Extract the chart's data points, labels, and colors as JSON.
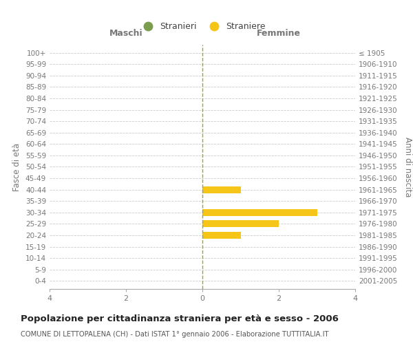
{
  "age_groups": [
    "100+",
    "95-99",
    "90-94",
    "85-89",
    "80-84",
    "75-79",
    "70-74",
    "65-69",
    "60-64",
    "55-59",
    "50-54",
    "45-49",
    "40-44",
    "35-39",
    "30-34",
    "25-29",
    "20-24",
    "15-19",
    "10-14",
    "5-9",
    "0-4"
  ],
  "birth_years": [
    "≤ 1905",
    "1906-1910",
    "1911-1915",
    "1916-1920",
    "1921-1925",
    "1926-1930",
    "1931-1935",
    "1936-1940",
    "1941-1945",
    "1946-1950",
    "1951-1955",
    "1956-1960",
    "1961-1965",
    "1966-1970",
    "1971-1975",
    "1976-1980",
    "1981-1985",
    "1986-1990",
    "1991-1995",
    "1996-2000",
    "2001-2005"
  ],
  "males": [
    0,
    0,
    0,
    0,
    0,
    0,
    0,
    0,
    0,
    0,
    0,
    0,
    0,
    0,
    0,
    0,
    0,
    0,
    0,
    0,
    0
  ],
  "females": [
    0,
    0,
    0,
    0,
    0,
    0,
    0,
    0,
    0,
    0,
    0,
    0,
    1,
    0,
    3,
    2,
    1,
    0,
    0,
    0,
    0
  ],
  "male_color": "#7B9E4E",
  "female_color": "#F5C518",
  "background_color": "#FFFFFF",
  "grid_color": "#CCCCCC",
  "zero_line_color": "#9A9A70",
  "title": "Popolazione per cittadinanza straniera per età e sesso - 2006",
  "subtitle": "COMUNE DI LETTOPALENA (CH) - Dati ISTAT 1° gennaio 2006 - Elaborazione TUTTITALIA.IT",
  "xlabel_left": "Maschi",
  "xlabel_right": "Femmine",
  "ylabel_left": "Fasce di età",
  "ylabel_right": "Anni di nascita",
  "legend_males": "Stranieri",
  "legend_females": "Straniere",
  "xlim": 4,
  "figsize": [
    6.0,
    5.0
  ],
  "dpi": 100
}
